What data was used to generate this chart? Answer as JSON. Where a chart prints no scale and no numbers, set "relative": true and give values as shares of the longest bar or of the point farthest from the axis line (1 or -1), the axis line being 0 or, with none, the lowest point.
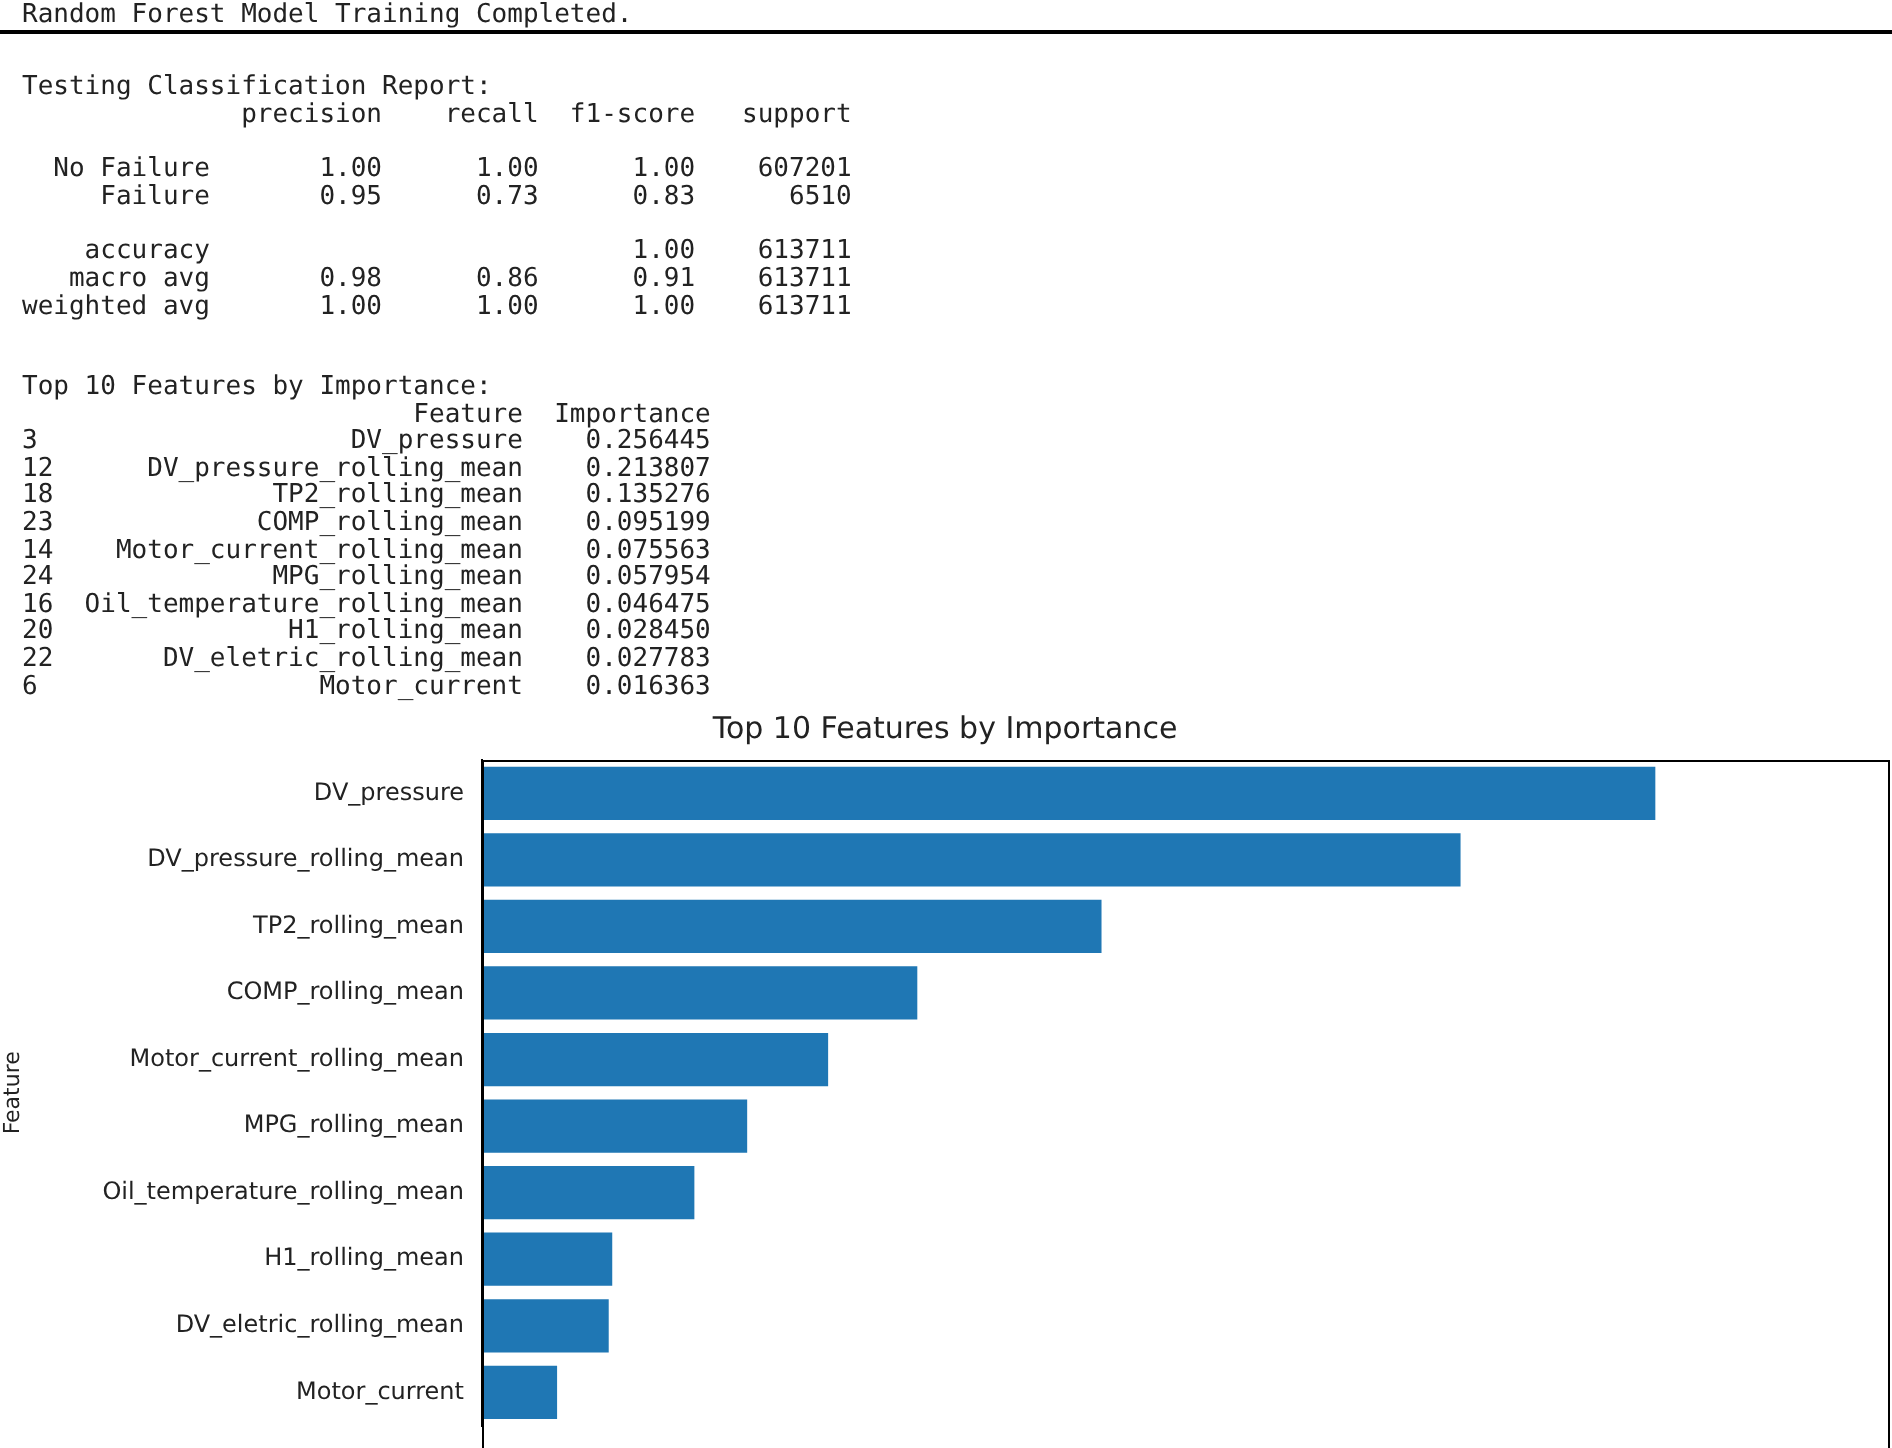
{
  "chart_data": [
    {
      "type": "other",
      "annotations": [
        "Random Forest Model Training Completed.",
        "Testing Classification Report:",
        "              precision    recall  f1-score   support",
        "  No Failure       1.00      1.00      1.00    607201",
        "     Failure       0.95      0.73      0.83      6510",
        "    accuracy                           1.00    613711",
        "   macro avg       0.98      0.86      0.91    613711",
        "weighted avg       1.00      1.00      1.00    613711"
      ]
    },
    {
      "type": "other",
      "annotations": [
        "Top 10 Features by Importance:",
        "                         Feature  Importance",
        "3                    DV_pressure    0.256445",
        "12      DV_pressure_rolling_mean    0.213807",
        "18              TP2_rolling_mean    0.135276",
        "23             COMP_rolling_mean    0.095199",
        "14    Motor_current_rolling_mean    0.075563",
        "24              MPG_rolling_mean    0.057954",
        "16  Oil_temperature_rolling_mean    0.046475",
        "20               H1_rolling_mean    0.028450",
        "22       DV_eletric_rolling_mean    0.027783",
        "6                  Motor_current    0.016363"
      ]
    },
    {
      "type": "bar",
      "orientation": "horizontal",
      "relative": true,
      "title": "Top 10 Features by Importance",
      "ylabel": "Feature",
      "categories": [
        "DV_pressure",
        "DV_pressure_rolling_mean",
        "TP2_rolling_mean",
        "COMP_rolling_mean",
        "Motor_current_rolling_mean",
        "MPG_rolling_mean",
        "Oil_temperature_rolling_mean",
        "H1_rolling_mean",
        "DV_eletric_rolling_mean",
        "Motor_current"
      ],
      "values": [
        1,
        0.834,
        0.528,
        0.371,
        0.295,
        0.226,
        0.181,
        0.111,
        0.108,
        0.064
      ],
      "color": "#1f77b4"
    }
  ]
}
